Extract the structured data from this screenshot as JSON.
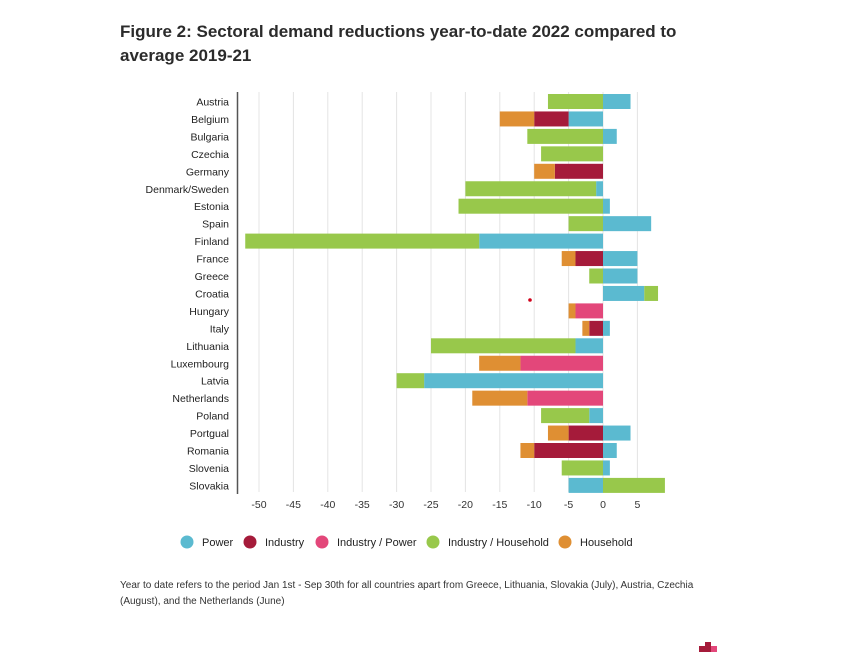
{
  "title": "Figure 2: Sectoral demand reductions year-to-date 2022 compared to average 2019-21",
  "footnote": "Year to date refers to the period Jan 1st - Sep 30th for all countries  apart from  Greece, Lithuania, Slovakia (July), Austria, Czechia (August), and the Netherlands (June)",
  "chart_data": {
    "type": "bar",
    "orientation": "horizontal",
    "stacked": true,
    "title": "Figure 2: Sectoral demand reductions year-to-date 2022 compared to average 2019-21",
    "xlabel": "",
    "ylabel": "",
    "xlim": [
      -52,
      10
    ],
    "xticks": [
      -50,
      -45,
      -40,
      -35,
      -30,
      -25,
      -20,
      -15,
      -10,
      -5,
      0,
      5
    ],
    "xtick_labels": [
      "-50",
      "-45",
      "-40",
      "-35",
      "-30",
      "-25",
      "-20",
      "-15",
      "-10",
      "-5",
      "0",
      "5"
    ],
    "grid": true,
    "legend_position": "bottom",
    "categories": [
      "Austria",
      "Belgium",
      "Bulgaria",
      "Czechia",
      "Germany",
      "Denmark/Sweden",
      "Estonia",
      "Spain",
      "Finland",
      "France",
      "Greece",
      "Croatia",
      "Hungary",
      "Italy",
      "Lithuania",
      "Luxembourg",
      "Latvia",
      "Netherlands",
      "Poland",
      "Portgual",
      "Romania",
      "Slovenia",
      "Slovakia"
    ],
    "series": [
      {
        "name": "Power",
        "color": "#5bbad0",
        "values": [
          4.0,
          -5.0,
          2.0,
          0,
          0,
          -1.0,
          1.0,
          7.0,
          -18.0,
          5.0,
          5.0,
          6.0,
          0,
          1.0,
          -4.0,
          0,
          -26.0,
          0,
          -2.0,
          4.0,
          2.0,
          1.0,
          -5.0
        ]
      },
      {
        "name": "Industry",
        "color": "#a51b3a",
        "values": [
          0,
          -5.0,
          0,
          0,
          -7.0,
          0,
          0,
          0,
          0,
          -4.0,
          0,
          0,
          0,
          -2.0,
          0,
          0,
          0,
          0,
          0,
          -5.0,
          -10.0,
          0,
          0
        ]
      },
      {
        "name": "Industry / Power",
        "color": "#e3477a",
        "values": [
          0,
          0,
          0,
          0,
          0,
          0,
          0,
          0,
          0,
          0,
          0,
          0,
          -4.0,
          0,
          0,
          -12.0,
          0,
          -11.0,
          0,
          0,
          0,
          0,
          0
        ]
      },
      {
        "name": "Industry / Household",
        "color": "#98c84b",
        "values": [
          -8.0,
          0,
          -11.0,
          -9.0,
          0,
          -19.0,
          -21.0,
          -5.0,
          -34.0,
          0,
          -2.0,
          2.0,
          0,
          0,
          -21.0,
          0,
          -4.0,
          0,
          -7.0,
          0,
          0,
          -6.0,
          9.0
        ]
      },
      {
        "name": "Household",
        "color": "#df8f33",
        "values": [
          0,
          -5.0,
          0,
          0,
          -3.0,
          0,
          0,
          0,
          0,
          -2.0,
          0,
          0,
          -1.0,
          -1.0,
          0,
          -6.0,
          0,
          -8.0,
          0,
          -3.0,
          -2.0,
          0,
          0
        ]
      }
    ]
  }
}
